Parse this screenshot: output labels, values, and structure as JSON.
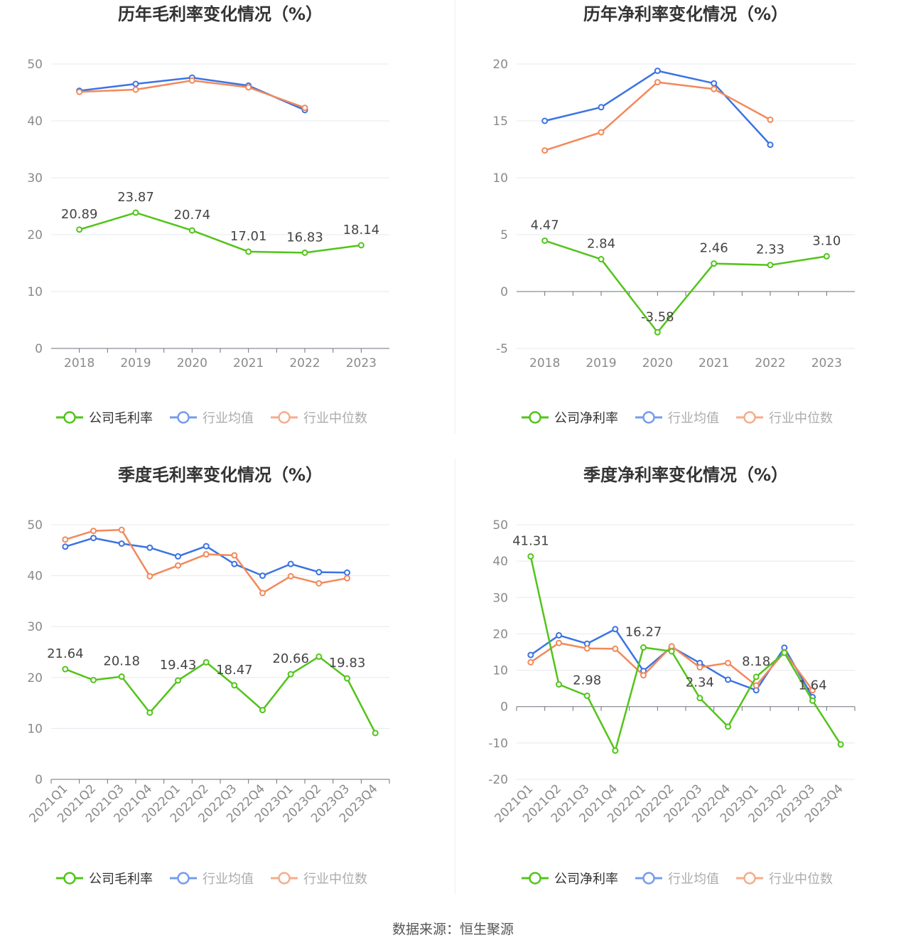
{
  "source_text": "数据来源：恒生聚源",
  "colors": {
    "company": "#52c41a",
    "avg": "#3b73e3",
    "median": "#f2895b",
    "axis_text": "#8a8a8a",
    "grid": "#e6e8ef",
    "title": "#333333"
  },
  "chart_data": [
    {
      "id": "annual-gross",
      "type": "line",
      "title": "历年毛利率变化情况（%）",
      "categories": [
        "2018",
        "2019",
        "2020",
        "2021",
        "2022",
        "2023"
      ],
      "ylim": [
        0,
        50
      ],
      "yticks": [
        0,
        10,
        20,
        30,
        40,
        50
      ],
      "series": [
        {
          "name": "公司毛利率",
          "role": "company",
          "values": [
            20.89,
            23.87,
            20.74,
            17.01,
            16.83,
            18.14
          ],
          "labels": [
            "20.89",
            "23.87",
            "20.74",
            "17.01",
            "16.83",
            "18.14"
          ]
        },
        {
          "name": "行业均值",
          "role": "avg",
          "values": [
            45.3,
            46.5,
            47.6,
            46.2,
            41.9,
            null
          ]
        },
        {
          "name": "行业中位数",
          "role": "median",
          "values": [
            45.1,
            45.5,
            47.1,
            45.9,
            42.3,
            null
          ]
        }
      ]
    },
    {
      "id": "annual-net",
      "type": "line",
      "title": "历年净利率变化情况（%）",
      "categories": [
        "2018",
        "2019",
        "2020",
        "2021",
        "2022",
        "2023"
      ],
      "ylim": [
        -5,
        20
      ],
      "yticks": [
        -5,
        0,
        5,
        10,
        15,
        20
      ],
      "series": [
        {
          "name": "公司净利率",
          "role": "company",
          "values": [
            4.47,
            2.84,
            -3.58,
            2.46,
            2.33,
            3.1
          ],
          "labels": [
            "4.47",
            "2.84",
            "-3.58",
            "2.46",
            "2.33",
            "3.10"
          ]
        },
        {
          "name": "行业均值",
          "role": "avg",
          "values": [
            15.0,
            16.2,
            19.4,
            18.3,
            12.9,
            null
          ]
        },
        {
          "name": "行业中位数",
          "role": "median",
          "values": [
            12.4,
            14.0,
            18.4,
            17.8,
            15.1,
            null
          ]
        }
      ]
    },
    {
      "id": "quarterly-gross",
      "type": "line",
      "title": "季度毛利率变化情况（%）",
      "categories": [
        "2021Q1",
        "2021Q2",
        "2021Q3",
        "2021Q4",
        "2022Q1",
        "2022Q2",
        "2022Q3",
        "2022Q4",
        "2023Q1",
        "2023Q2",
        "2023Q3",
        "2023Q4"
      ],
      "ylim": [
        0,
        50
      ],
      "yticks": [
        0,
        10,
        20,
        30,
        40,
        50
      ],
      "series": [
        {
          "name": "公司毛利率",
          "role": "company",
          "values": [
            21.64,
            19.5,
            20.18,
            13.1,
            19.43,
            23.0,
            18.47,
            13.6,
            20.66,
            24.1,
            19.83,
            9.1
          ],
          "labels": [
            "21.64",
            null,
            "20.18",
            null,
            "19.43",
            null,
            "18.47",
            null,
            "20.66",
            null,
            "19.83",
            null
          ]
        },
        {
          "name": "行业均值",
          "role": "avg",
          "values": [
            45.7,
            47.4,
            46.3,
            45.5,
            43.8,
            45.8,
            42.3,
            40.0,
            42.3,
            40.7,
            40.6,
            null
          ]
        },
        {
          "name": "行业中位数",
          "role": "median",
          "values": [
            47.1,
            48.8,
            49.0,
            39.9,
            42.0,
            44.2,
            44.0,
            36.6,
            39.9,
            38.5,
            39.5,
            null
          ]
        }
      ]
    },
    {
      "id": "quarterly-net",
      "type": "line",
      "title": "季度净利率变化情况（%）",
      "categories": [
        "2021Q1",
        "2021Q2",
        "2021Q3",
        "2021Q4",
        "2022Q1",
        "2022Q2",
        "2022Q3",
        "2022Q4",
        "2023Q1",
        "2023Q2",
        "2023Q3",
        "2023Q4"
      ],
      "ylim": [
        -20,
        50
      ],
      "yticks": [
        -20,
        -10,
        0,
        10,
        20,
        30,
        40,
        50
      ],
      "series": [
        {
          "name": "公司净利率",
          "role": "company",
          "values": [
            41.31,
            6.1,
            2.98,
            -12.1,
            16.27,
            15.2,
            2.34,
            -5.5,
            8.18,
            14.8,
            1.64,
            -10.4
          ],
          "labels": [
            "41.31",
            null,
            "2.98",
            null,
            "16.27",
            null,
            "2.34",
            null,
            "8.18",
            null,
            "1.64",
            null
          ]
        },
        {
          "name": "行业均值",
          "role": "avg",
          "values": [
            14.2,
            19.6,
            17.3,
            21.3,
            9.8,
            16.4,
            12.0,
            7.4,
            4.5,
            16.2,
            2.6,
            null
          ]
        },
        {
          "name": "行业中位数",
          "role": "median",
          "values": [
            12.2,
            17.5,
            16.0,
            15.9,
            8.6,
            16.6,
            10.8,
            12.0,
            5.8,
            15.0,
            4.5,
            null
          ]
        }
      ]
    }
  ]
}
